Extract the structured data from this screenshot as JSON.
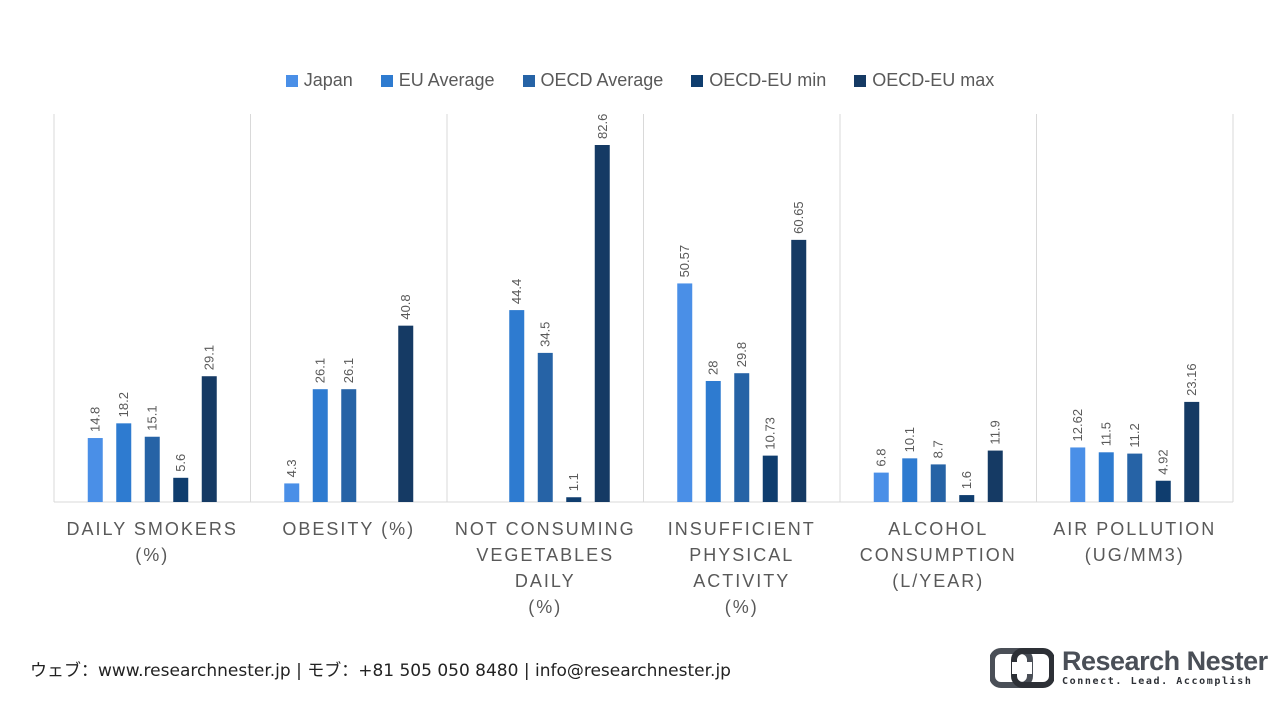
{
  "chart_data": {
    "type": "bar",
    "title": "",
    "xlabel": "",
    "ylabel": "",
    "ylim": [
      0,
      85
    ],
    "legend_position": "top",
    "grid": false,
    "categories": [
      "DAILY SMOKERS\n(%)",
      "OBESITY (%)",
      "NOT CONSUMING\nVEGETABLES DAILY\n(%)",
      "INSUFFICIENT\nPHYSICAL ACTIVITY\n(%)",
      "ALCOHOL\nCONSUMPTION\n(L/YEAR)",
      "AIR POLLUTION\n(UG/MM3)"
    ],
    "series": [
      {
        "name": "Japan",
        "color": "#4a8fe7",
        "values": [
          14.8,
          4.3,
          null,
          50.57,
          6.8,
          12.62
        ],
        "labels": [
          "14.8",
          "4.3",
          "",
          "50.57",
          "6.8",
          "12.62"
        ]
      },
      {
        "name": "EU Average",
        "color": "#2e7bd0",
        "values": [
          18.2,
          26.1,
          44.4,
          28,
          10.1,
          11.5
        ],
        "labels": [
          "18.2",
          "26.1",
          "44.4",
          "28",
          "10.1",
          "11.5"
        ]
      },
      {
        "name": "OECD Average",
        "color": "#2663a6",
        "values": [
          15.1,
          26.1,
          34.5,
          29.8,
          8.7,
          11.2
        ],
        "labels": [
          "15.1",
          "26.1",
          "34.5",
          "29.8",
          "8.7",
          "11.2"
        ]
      },
      {
        "name": "OECD-EU min",
        "color": "#0f3d6e",
        "values": [
          5.6,
          null,
          1.1,
          10.73,
          1.6,
          4.92
        ],
        "labels": [
          "5.6",
          "",
          "1.1",
          "10.73",
          "1.6",
          "4.92"
        ]
      },
      {
        "name": "OECD-EU max",
        "color": "#153a64",
        "values": [
          29.1,
          40.8,
          82.6,
          60.65,
          11.9,
          23.16
        ],
        "labels": [
          "29.1",
          "40.8",
          "82.6",
          "60.65",
          "11.9",
          "23.16"
        ]
      }
    ]
  },
  "footer": {
    "contact": "ウェブ：www.researchnester.jp | モブ：+81 505 050 8480 | info@researchnester.jp"
  },
  "logo": {
    "name": "Research Nester",
    "tagline": "Connect. Lead. Accomplish"
  },
  "colors": {
    "text": "#595959",
    "divider": "#d9d9d9"
  }
}
